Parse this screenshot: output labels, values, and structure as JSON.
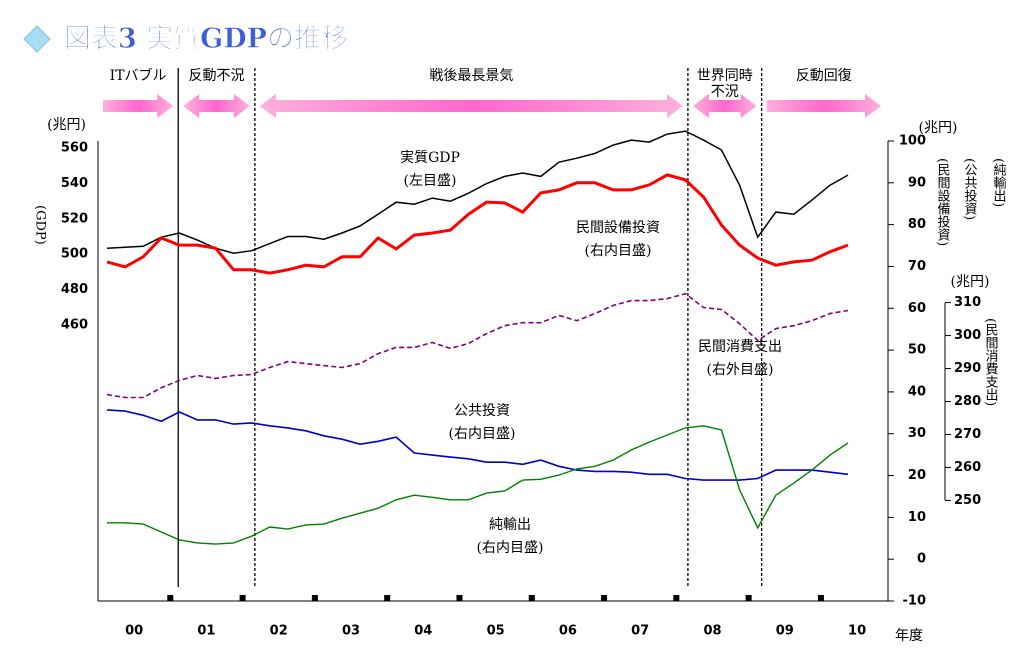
{
  "chart_data": {
    "type": "line",
    "title": "図表3 実質GDPの推移",
    "x": [
      0.125,
      0.375,
      0.625,
      0.875,
      1.125,
      1.375,
      1.625,
      1.875,
      2.125,
      2.375,
      2.625,
      2.875,
      3.125,
      3.375,
      3.625,
      3.875,
      4.125,
      4.375,
      4.625,
      4.875,
      5.125,
      5.375,
      5.625,
      5.875,
      6.125,
      6.375,
      6.625,
      6.875,
      7.125,
      7.375,
      7.625,
      7.875,
      8.125,
      8.375,
      8.625,
      8.875,
      9.125,
      9.375,
      9.625,
      9.875,
      10.125,
      10.375
    ],
    "xlim": [
      0,
      10.9
    ],
    "xticks": [
      {
        "value": 0.5,
        "label": "00"
      },
      {
        "value": 1.5,
        "label": "01"
      },
      {
        "value": 2.5,
        "label": "02"
      },
      {
        "value": 3.5,
        "label": "03"
      },
      {
        "value": 4.5,
        "label": "04"
      },
      {
        "value": 5.5,
        "label": "05"
      },
      {
        "value": 6.5,
        "label": "06"
      },
      {
        "value": 7.5,
        "label": "07"
      },
      {
        "value": 8.5,
        "label": "08"
      },
      {
        "value": 9.5,
        "label": "09"
      },
      {
        "value": 10.5,
        "label": "10"
      }
    ],
    "xlabel": "年度",
    "ylim": [
      304,
      564
    ],
    "yticks": [
      460,
      480,
      500,
      520,
      540,
      560
    ],
    "yunit": "(兆円)",
    "ylabel": "(GDP)",
    "y2lim": [
      -10,
      100
    ],
    "y2ticks": [
      -10,
      0,
      10,
      20,
      30,
      40,
      50,
      60,
      70,
      80,
      90,
      100
    ],
    "y2unit": "(兆円)",
    "y2labels": [
      "(民間設備投資)",
      "(公共投資)",
      "(純輸出)"
    ],
    "y3lim": [
      219.5,
      359
    ],
    "y3ticks": [
      250,
      260,
      270,
      280,
      290,
      300,
      310
    ],
    "y3unit": "(兆円)",
    "y3label": "(民間消費支出)",
    "periods": [
      {
        "label": [
          "ITバブル"
        ]
      },
      {
        "label": [
          "反動不況"
        ]
      },
      {
        "label": [
          "戦後最長景気"
        ]
      },
      {
        "label": [
          "世界同時",
          "不況"
        ]
      },
      {
        "label": [
          "反動回復"
        ]
      }
    ],
    "boundaries": [
      1.11,
      2.17,
      8.16,
      9.18
    ],
    "series": [
      {
        "name": "実質GDP",
        "scale_label": "(左目盛)",
        "color": "#000000",
        "axis": "y",
        "values": [
          503.4,
          504,
          504.5,
          509.6,
          512,
          508,
          503.4,
          500.6,
          502,
          506,
          510,
          510,
          508.5,
          512,
          516,
          522.6,
          529.4,
          528.3,
          531.7,
          530,
          534.5,
          540,
          544,
          545.9,
          544,
          552,
          554.3,
          557,
          561.7,
          564.5,
          563.4,
          567.9,
          569.6,
          564.5,
          558.9,
          539,
          509.6,
          523.8,
          522.6,
          530.6,
          539,
          544.7
        ]
      },
      {
        "name": "民間設備投資",
        "scale_label": "(右内目盛)",
        "color": "#ff0000",
        "axis": "y2",
        "values": [
          71.1,
          69.9,
          72.3,
          76.8,
          75.1,
          75.1,
          74.4,
          69.2,
          69.2,
          68.4,
          69.2,
          70.3,
          69.9,
          72.3,
          72.3,
          76.8,
          74.2,
          77.5,
          78,
          78.7,
          82.5,
          85.4,
          85.2,
          83,
          87.6,
          88.3,
          90,
          90,
          88.3,
          88.3,
          89.5,
          91.9,
          90.7,
          86.6,
          79.9,
          75.1,
          72,
          70.3,
          71.1,
          71.5,
          73.5,
          75.1
        ]
      },
      {
        "name": "民間消費支出",
        "scale_label": "(右外目盛)",
        "color": "#800080",
        "axis": "y3",
        "values": [
          282.1,
          281.2,
          281.2,
          284.2,
          286.4,
          287.9,
          287,
          287.9,
          288.2,
          290.3,
          292.1,
          291.5,
          290.9,
          290.3,
          291.5,
          294.5,
          296.4,
          296.4,
          297.9,
          296.1,
          297.6,
          300.6,
          303,
          303.9,
          303.9,
          306.1,
          304.5,
          306.7,
          309.1,
          310.6,
          310.6,
          311.2,
          312.7,
          308.5,
          307.9,
          303.6,
          298.5,
          302.1,
          303,
          304.5,
          306.7,
          307.6
        ]
      },
      {
        "name": "公共投資",
        "scale_label": "(右内目盛)",
        "color": "#0000cc",
        "axis": "y2",
        "values": [
          35.7,
          35.4,
          34.4,
          33,
          35.2,
          33.3,
          33.3,
          32.3,
          32.6,
          31.9,
          31.4,
          30.7,
          29.5,
          28.7,
          27.5,
          28.2,
          29.2,
          25.4,
          24.9,
          24.4,
          24,
          23.2,
          23.2,
          22.7,
          23.7,
          22.2,
          21.3,
          21,
          21,
          20.8,
          20.3,
          20.3,
          19.3,
          18.9,
          18.9,
          18.9,
          19.3,
          21.3,
          21.3,
          21.3,
          20.8,
          20.3
        ]
      },
      {
        "name": "純輸出",
        "scale_label": "(右内目盛)",
        "color": "#008000",
        "axis": "y2",
        "values": [
          8.7,
          8.7,
          8.4,
          6.5,
          4.6,
          3.9,
          3.6,
          3.9,
          5.5,
          7.7,
          7.2,
          8.2,
          8.4,
          9.8,
          11,
          12.2,
          14.2,
          15.3,
          14.8,
          14.2,
          14.2,
          15.8,
          16.3,
          18.9,
          19.1,
          20.1,
          21.6,
          22.2,
          23.7,
          26.1,
          28,
          29.7,
          31.4,
          31.9,
          30.9,
          16.6,
          7.5,
          15.3,
          18.2,
          21.3,
          24.9,
          27.8
        ]
      }
    ]
  }
}
